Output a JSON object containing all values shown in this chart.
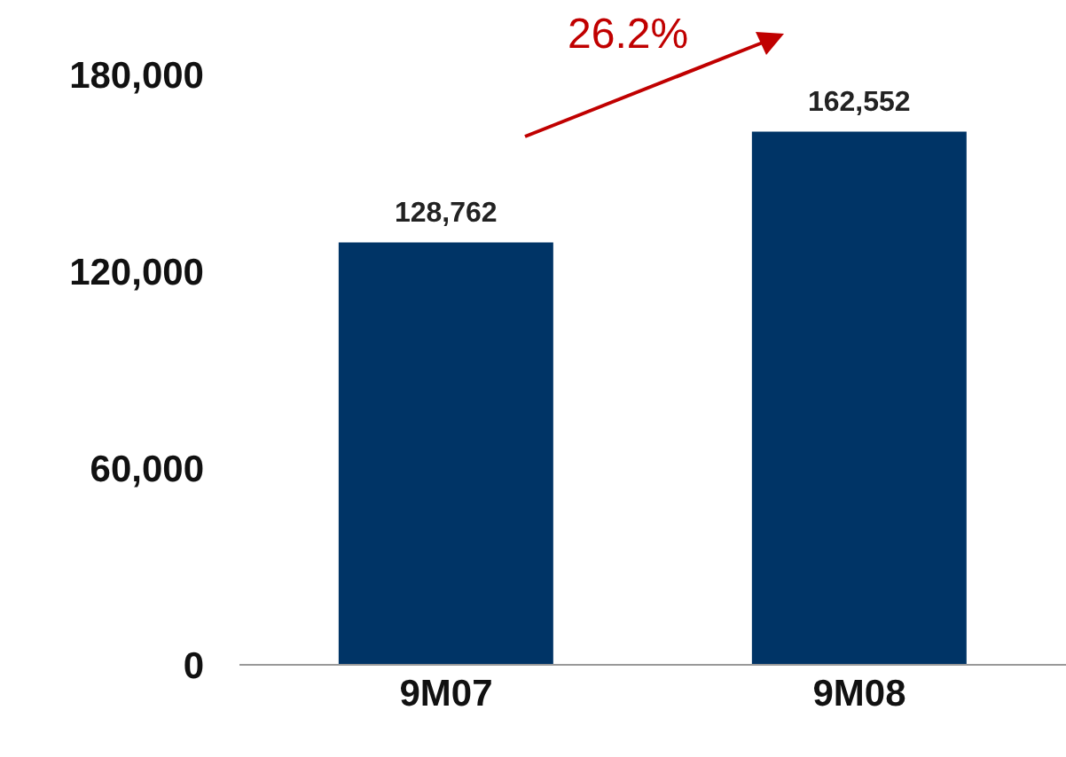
{
  "chart_data": {
    "type": "bar",
    "categories": [
      "9M07",
      "9M08"
    ],
    "values": [
      128762,
      162552
    ],
    "color": "#003466",
    "value_labels": [
      "128,762",
      "162,552"
    ],
    "ylim": [
      0,
      180000
    ],
    "yticks": [
      {
        "value": 0,
        "label": "0"
      },
      {
        "value": 60000,
        "label": "60,000"
      },
      {
        "value": 120000,
        "label": "120,000"
      },
      {
        "value": 180000,
        "label": "180,000"
      }
    ],
    "grid": false,
    "annotations": [
      "26.2%"
    ]
  }
}
